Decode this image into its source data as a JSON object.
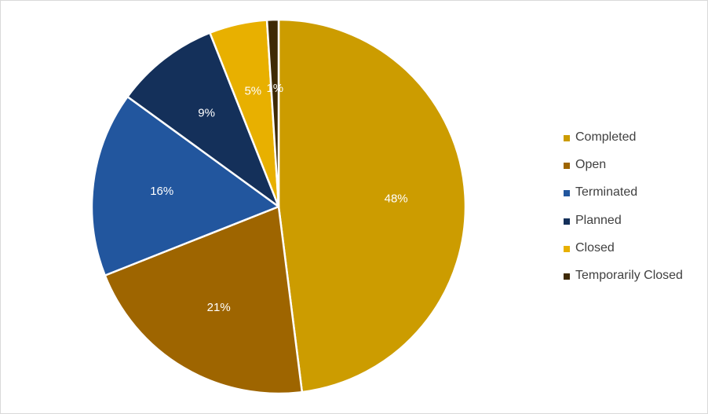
{
  "chart_data": {
    "type": "pie",
    "title": "",
    "legend_position": "right",
    "series": [
      {
        "categories": [
          "Completed",
          "Open",
          "Terminated",
          "Planned",
          "Closed",
          "Temporarily Closed"
        ],
        "values": [
          48,
          21,
          16,
          9,
          5,
          1
        ],
        "labels": [
          "48%",
          "21%",
          "16%",
          "9%",
          "5%",
          "1%"
        ],
        "colors": [
          "#CC9C00",
          "#9E6500",
          "#22569E",
          "#14305A",
          "#E8B000",
          "#3F2A05"
        ]
      }
    ]
  }
}
